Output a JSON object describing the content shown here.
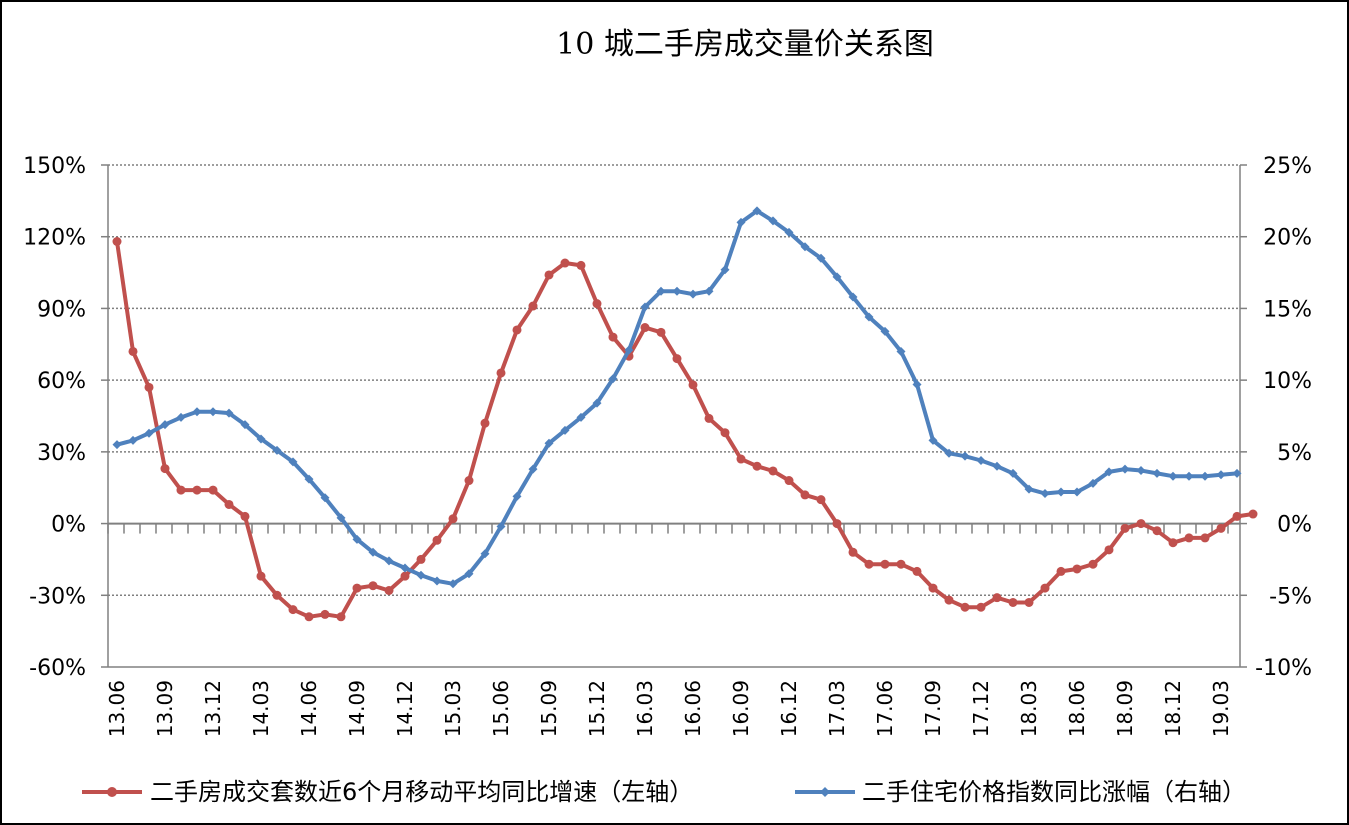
{
  "chart_data": {
    "type": "line",
    "title": "10 城二手房成交量价关系图",
    "x_tick_labels": [
      "13.06",
      "13.09",
      "13.12",
      "14.03",
      "14.06",
      "14.09",
      "14.12",
      "15.03",
      "15.06",
      "15.09",
      "15.12",
      "16.03",
      "16.06",
      "16.09",
      "16.12",
      "17.03",
      "17.06",
      "17.09",
      "17.12",
      "18.03",
      "18.06",
      "18.09",
      "18.12",
      "19.03"
    ],
    "x_tick_indices": [
      0,
      3,
      6,
      9,
      12,
      15,
      18,
      21,
      24,
      27,
      30,
      33,
      36,
      39,
      42,
      45,
      48,
      51,
      54,
      57,
      60,
      63,
      66,
      69
    ],
    "y_left": {
      "ylim": [
        -60,
        150
      ],
      "ticks": [
        150,
        120,
        90,
        60,
        30,
        0,
        -30,
        -60
      ],
      "tick_labels": [
        "150%",
        "120%",
        "90%",
        "60%",
        "30%",
        "0%",
        "-30%",
        "-60%"
      ]
    },
    "y_right": {
      "ylim": [
        -10,
        25
      ],
      "ticks": [
        25,
        20,
        15,
        10,
        5,
        0,
        -5,
        -10
      ],
      "tick_labels": [
        "25%",
        "20%",
        "15%",
        "10%",
        "5%",
        "0%",
        "-5%",
        "-10%"
      ]
    },
    "series": [
      {
        "name": "二手房成交套数近6个月移动平均同比增速（左轴）",
        "axis": "left",
        "color": "#C0504D",
        "marker": "circle",
        "values": [
          118,
          72,
          57,
          23,
          14,
          14,
          14,
          8,
          3,
          -22,
          -30,
          -36,
          -39,
          -38,
          -39,
          -27,
          -26,
          -28,
          -22,
          -15,
          -7,
          2,
          18,
          42,
          63,
          81,
          91,
          104,
          109,
          108,
          92,
          78,
          70,
          82,
          80,
          69,
          58,
          44,
          38,
          27,
          24,
          22,
          18,
          12,
          10,
          0,
          -12,
          -17,
          -17,
          -17,
          -20,
          -27,
          -32,
          -35,
          -35,
          -31,
          -33,
          -33,
          -27,
          -20,
          -19,
          -17,
          -11,
          -2,
          0,
          -3,
          -8,
          -6,
          -6,
          -2,
          3,
          4
        ]
      },
      {
        "name": "二手住宅价格指数同比涨幅（右轴）",
        "axis": "right",
        "color": "#4F81BD",
        "marker": "diamond",
        "values": [
          5.5,
          5.8,
          6.3,
          6.9,
          7.4,
          7.8,
          7.8,
          7.7,
          6.9,
          5.9,
          5.1,
          4.3,
          3.1,
          1.8,
          0.4,
          -1.1,
          -2.0,
          -2.6,
          -3.1,
          -3.6,
          -4.0,
          -4.2,
          -3.5,
          -2.1,
          -0.2,
          1.9,
          3.8,
          5.6,
          6.5,
          7.4,
          8.4,
          10.1,
          12.1,
          15.1,
          16.2,
          16.2,
          16.0,
          16.2,
          17.7,
          21.0,
          21.8,
          21.1,
          20.3,
          19.3,
          18.5,
          17.2,
          15.8,
          14.4,
          13.4,
          12.0,
          9.7,
          5.8,
          4.9,
          4.7,
          4.4,
          4.0,
          3.5,
          2.4,
          2.1,
          2.2,
          2.2,
          2.8,
          3.6,
          3.8,
          3.7,
          3.5,
          3.3,
          3.3,
          3.3,
          3.4,
          3.5
        ]
      }
    ],
    "legend": [
      "二手房成交套数近6个月移动平均同比增速（左轴）",
      "二手住宅价格指数同比涨幅（右轴）"
    ],
    "grid": true
  }
}
